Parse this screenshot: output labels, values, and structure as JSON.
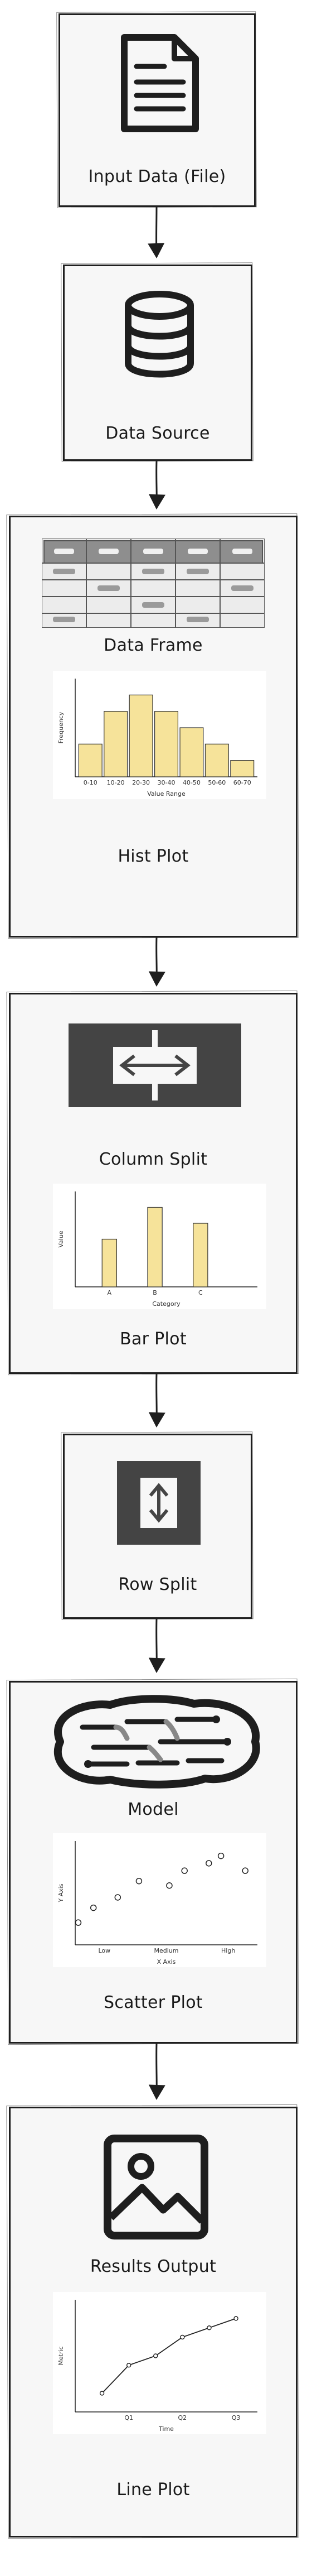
{
  "nodes": {
    "input": {
      "label": "Input Data (File)",
      "icon": "document-icon"
    },
    "source": {
      "label": "Data Source",
      "icon": "database-icon"
    },
    "frame": {
      "label": "Data Frame",
      "icon": "table-icon"
    },
    "hist_caption": "Hist Plot",
    "colsplit": {
      "label": "Column Split",
      "icon": "column-split-icon"
    },
    "bar_caption": "Bar Plot",
    "rowsplit": {
      "label": "Row Split",
      "icon": "row-split-icon"
    },
    "model": {
      "label": "Model",
      "icon": "brain-icon"
    },
    "scatter_caption": "Scatter Plot",
    "results": {
      "label": "Results Output",
      "icon": "image-icon"
    },
    "line_caption": "Line Plot"
  },
  "colors": {
    "bar_fill": "#f6e39a",
    "stroke": "#1e1e1e",
    "box_fill": "#f7f7f7"
  },
  "chart_data": [
    {
      "type": "bar",
      "categories": [
        "0-10",
        "10-20",
        "20-30",
        "30-40",
        "40-50",
        "50-60",
        "60-70"
      ],
      "values": [
        2,
        4,
        5,
        4,
        3,
        2,
        1
      ],
      "title": "",
      "xlabel": "Value Range",
      "ylabel": "Frequency",
      "ylim": [
        0,
        6
      ]
    },
    {
      "type": "bar",
      "categories": [
        "A",
        "B",
        "C"
      ],
      "values": [
        3,
        5,
        4
      ],
      "title": "",
      "xlabel": "Category",
      "ylabel": "Value",
      "ylim": [
        0,
        6
      ]
    },
    {
      "type": "scatter",
      "categories": [
        "Low",
        "Medium",
        "High"
      ],
      "x": [
        0.2,
        1.2,
        2.8,
        4.2,
        6.2,
        7.2,
        8.8,
        9.6,
        11.2
      ],
      "y": [
        1.5,
        2.5,
        3.2,
        4.3,
        4.0,
        5.0,
        5.5,
        6.0,
        5.0
      ],
      "title": "",
      "xlabel": "X Axis",
      "ylabel": "Y Axis",
      "xlim": [
        0,
        12
      ],
      "ylim": [
        0,
        7
      ]
    },
    {
      "type": "line",
      "categories": [
        "Q1",
        "Q2",
        "Q3"
      ],
      "x": [
        0.5,
        1,
        1.5,
        2,
        2.5,
        3
      ],
      "y": [
        1.0,
        2.5,
        3.0,
        4.0,
        4.5,
        5.0
      ],
      "title": "",
      "xlabel": "Time",
      "ylabel": "Metric",
      "xlim": [
        0,
        3.4
      ],
      "ylim": [
        0,
        6
      ]
    }
  ]
}
